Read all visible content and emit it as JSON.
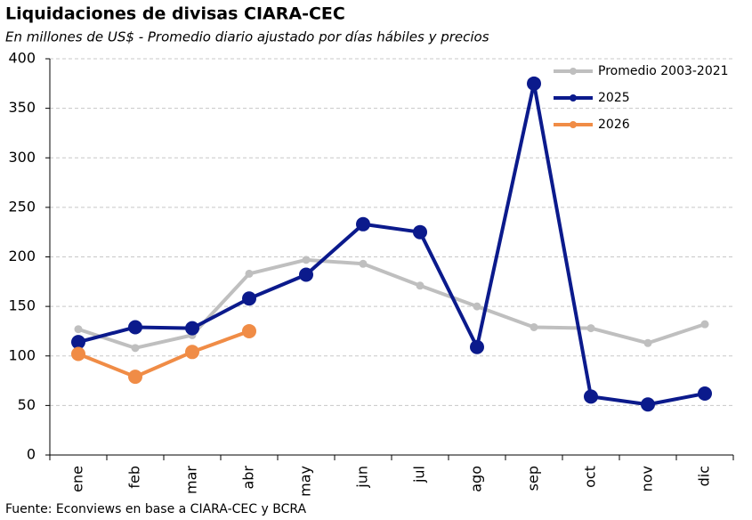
{
  "chart_data": {
    "type": "line",
    "title": "Liquidaciones de divisas CIARA-CEC",
    "subtitle": "En millones de US$ - Promedio diario ajustado por días hábiles y precios",
    "source": "Fuente: Econviews en base a CIARA-CEC y BCRA",
    "categories": [
      "ene",
      "feb",
      "mar",
      "abr",
      "may",
      "jun",
      "jul",
      "ago",
      "sep",
      "oct",
      "nov",
      "dic"
    ],
    "series": [
      {
        "name": "Promedio 2003-2021",
        "color": "#bfbfbf",
        "values": [
          127,
          108,
          121,
          183,
          197,
          193,
          171,
          150,
          129,
          128,
          113,
          132
        ]
      },
      {
        "name": "2025",
        "color": "#0b1a8c",
        "values": [
          114,
          129,
          128,
          158,
          182,
          233,
          225,
          109,
          375,
          59,
          51,
          62
        ]
      },
      {
        "name": "2026",
        "color": "#f08c46",
        "values": [
          102,
          79,
          104,
          125,
          null,
          null,
          null,
          null,
          null,
          null,
          null,
          null
        ]
      }
    ],
    "ylim": [
      0,
      400
    ],
    "yticks": [
      0,
      50,
      100,
      150,
      200,
      250,
      300,
      350,
      400
    ],
    "grid": true,
    "legend": "top-right"
  }
}
